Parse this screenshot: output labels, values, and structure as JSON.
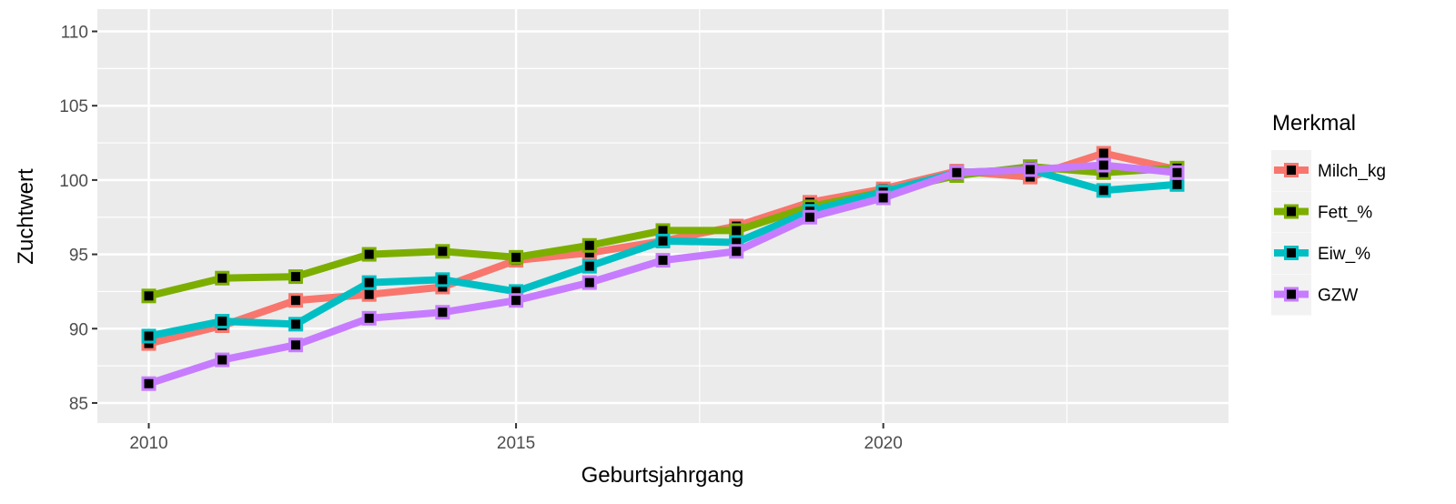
{
  "chart_data": {
    "type": "line",
    "title": "",
    "xlabel": "Geburtsjahrgang",
    "ylabel": "Zuchtwert",
    "xlim": [
      2009.3,
      2024.7
    ],
    "ylim": [
      83.65,
      111.5
    ],
    "xticks": [
      2010,
      2015,
      2020
    ],
    "xtick_labels": [
      "2010",
      "2015",
      "2020"
    ],
    "yticks": [
      85,
      90,
      95,
      100,
      105,
      110
    ],
    "ytick_labels": [
      "85",
      "90",
      "95",
      "100",
      "105",
      "110"
    ],
    "grid": true,
    "legend": {
      "title": "Merkmal",
      "position": "right"
    },
    "x": [
      2010,
      2011,
      2012,
      2013,
      2014,
      2015,
      2016,
      2017,
      2018,
      2019,
      2020,
      2021,
      2022,
      2023,
      2024
    ],
    "series": [
      {
        "name": "Milch_kg",
        "color": "#F8766D",
        "values": [
          89.0,
          90.2,
          91.9,
          92.3,
          92.8,
          94.6,
          95.1,
          95.9,
          96.9,
          98.5,
          99.4,
          100.6,
          100.2,
          101.8,
          100.7
        ]
      },
      {
        "name": "Fett_%",
        "color": "#7CAE00",
        "values": [
          92.2,
          93.4,
          93.5,
          95.0,
          95.2,
          94.8,
          95.6,
          96.6,
          96.6,
          98.2,
          99.2,
          100.3,
          100.9,
          100.5,
          100.8
        ]
      },
      {
        "name": "Eiw_%",
        "color": "#00BFC4",
        "values": [
          89.5,
          90.5,
          90.3,
          93.1,
          93.3,
          92.5,
          94.2,
          95.9,
          95.8,
          97.9,
          99.2,
          100.5,
          100.7,
          99.3,
          99.7
        ]
      },
      {
        "name": "GZW",
        "color": "#C77CFF",
        "values": [
          86.3,
          87.9,
          88.9,
          90.7,
          91.1,
          91.9,
          93.1,
          94.6,
          95.2,
          97.5,
          98.8,
          100.5,
          100.7,
          101.0,
          100.5
        ]
      }
    ]
  }
}
